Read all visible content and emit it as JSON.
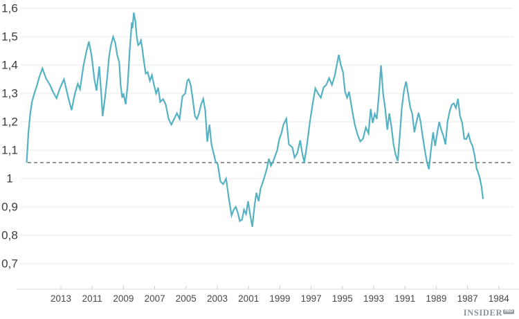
{
  "chart_data": {
    "type": "line",
    "title": "",
    "description": "Exchange-rate style line chart, monthly values, time axis reversed (newest year on the left)",
    "line_color": "#54b2c2",
    "x_axis": {
      "tick_labels": [
        "2013",
        "2011",
        "2009",
        "2007",
        "2005",
        "2003",
        "2001",
        "1999",
        "1997",
        "1995",
        "1993",
        "1991",
        "1989",
        "1987",
        "1984"
      ],
      "direction": "reversed",
      "years_per_tick_gap": 2
    },
    "y_axis": {
      "ticks": [
        {
          "label": "1,6",
          "value": 1.6
        },
        {
          "label": "1,5",
          "value": 1.5
        },
        {
          "label": "1,4",
          "value": 1.4
        },
        {
          "label": "1,3",
          "value": 1.3
        },
        {
          "label": "1,2",
          "value": 1.2
        },
        {
          "label": "1,1",
          "value": 1.1
        },
        {
          "label": "1",
          "value": 1.0
        },
        {
          "label": "0,9",
          "value": 0.9
        },
        {
          "label": "0,8",
          "value": 0.8
        },
        {
          "label": "0,7",
          "value": 0.7
        }
      ],
      "ylim": [
        0.65,
        1.63
      ],
      "grid": true
    },
    "reference_line": {
      "value": 1.056,
      "style": "dashed",
      "color": "#8f9598"
    },
    "points": [
      [
        2015.19,
        1.056
      ],
      [
        2015.08,
        1.16
      ],
      [
        2014.97,
        1.225
      ],
      [
        2014.85,
        1.27
      ],
      [
        2014.7,
        1.3
      ],
      [
        2014.55,
        1.325
      ],
      [
        2014.4,
        1.355
      ],
      [
        2014.18,
        1.388
      ],
      [
        2013.95,
        1.353
      ],
      [
        2013.7,
        1.33
      ],
      [
        2013.5,
        1.305
      ],
      [
        2013.28,
        1.283
      ],
      [
        2013.05,
        1.32
      ],
      [
        2012.8,
        1.35
      ],
      [
        2012.55,
        1.29
      ],
      [
        2012.32,
        1.241
      ],
      [
        2012.1,
        1.3
      ],
      [
        2011.92,
        1.334
      ],
      [
        2011.78,
        1.315
      ],
      [
        2011.55,
        1.4
      ],
      [
        2011.38,
        1.445
      ],
      [
        2011.21,
        1.483
      ],
      [
        2011.03,
        1.43
      ],
      [
        2010.86,
        1.35
      ],
      [
        2010.72,
        1.31
      ],
      [
        2010.55,
        1.395
      ],
      [
        2010.42,
        1.3
      ],
      [
        2010.33,
        1.22
      ],
      [
        2010.18,
        1.285
      ],
      [
        2010.05,
        1.35
      ],
      [
        2009.92,
        1.43
      ],
      [
        2009.8,
        1.47
      ],
      [
        2009.66,
        1.5
      ],
      [
        2009.52,
        1.478
      ],
      [
        2009.4,
        1.435
      ],
      [
        2009.27,
        1.41
      ],
      [
        2009.18,
        1.33
      ],
      [
        2009.08,
        1.285
      ],
      [
        2009.0,
        1.3
      ],
      [
        2008.86,
        1.262
      ],
      [
        2008.73,
        1.33
      ],
      [
        2008.6,
        1.45
      ],
      [
        2008.47,
        1.55
      ],
      [
        2008.42,
        1.53
      ],
      [
        2008.34,
        1.585
      ],
      [
        2008.24,
        1.555
      ],
      [
        2008.15,
        1.5
      ],
      [
        2008.06,
        1.47
      ],
      [
        2007.97,
        1.475
      ],
      [
        2007.88,
        1.487
      ],
      [
        2007.8,
        1.46
      ],
      [
        2007.71,
        1.42
      ],
      [
        2007.58,
        1.37
      ],
      [
        2007.45,
        1.375
      ],
      [
        2007.31,
        1.345
      ],
      [
        2007.18,
        1.365
      ],
      [
        2007.05,
        1.33
      ],
      [
        2006.91,
        1.3
      ],
      [
        2006.78,
        1.32
      ],
      [
        2006.65,
        1.27
      ],
      [
        2006.47,
        1.28
      ],
      [
        2006.29,
        1.26
      ],
      [
        2006.11,
        1.21
      ],
      [
        2005.94,
        1.19
      ],
      [
        2005.76,
        1.21
      ],
      [
        2005.58,
        1.23
      ],
      [
        2005.41,
        1.21
      ],
      [
        2005.23,
        1.29
      ],
      [
        2005.05,
        1.3
      ],
      [
        2004.92,
        1.345
      ],
      [
        2004.83,
        1.35
      ],
      [
        2004.7,
        1.33
      ],
      [
        2004.57,
        1.28
      ],
      [
        2004.43,
        1.22
      ],
      [
        2004.3,
        1.21
      ],
      [
        2004.17,
        1.23
      ],
      [
        2004.04,
        1.26
      ],
      [
        2003.9,
        1.281
      ],
      [
        2003.77,
        1.24
      ],
      [
        2003.64,
        1.13
      ],
      [
        2003.5,
        1.19
      ],
      [
        2003.37,
        1.12
      ],
      [
        2003.24,
        1.09
      ],
      [
        2003.11,
        1.06
      ],
      [
        2002.97,
        1.05
      ],
      [
        2002.8,
        0.99
      ],
      [
        2002.62,
        0.98
      ],
      [
        2002.44,
        1.0
      ],
      [
        2002.26,
        0.93
      ],
      [
        2002.09,
        0.87
      ],
      [
        2001.95,
        0.89
      ],
      [
        2001.82,
        0.9
      ],
      [
        2001.69,
        0.88
      ],
      [
        2001.56,
        0.85
      ],
      [
        2001.42,
        0.855
      ],
      [
        2001.29,
        0.89
      ],
      [
        2001.16,
        0.875
      ],
      [
        2001.03,
        0.92
      ],
      [
        2000.89,
        0.87
      ],
      [
        2000.76,
        0.83
      ],
      [
        2000.63,
        0.9
      ],
      [
        2000.5,
        0.95
      ],
      [
        2000.36,
        0.92
      ],
      [
        2000.23,
        0.965
      ],
      [
        2000.1,
        0.985
      ],
      [
        1999.96,
        1.01
      ],
      [
        1999.83,
        1.035
      ],
      [
        1999.7,
        1.07
      ],
      [
        1999.57,
        1.045
      ],
      [
        1999.43,
        1.06
      ],
      [
        1999.3,
        1.08
      ],
      [
        1999.17,
        1.1
      ],
      [
        1999.03,
        1.14
      ],
      [
        1998.9,
        1.16
      ],
      [
        1998.77,
        1.19
      ],
      [
        1998.59,
        1.211
      ],
      [
        1998.42,
        1.12
      ],
      [
        1998.2,
        1.11
      ],
      [
        1998.06,
        1.074
      ],
      [
        1997.88,
        1.09
      ],
      [
        1997.7,
        1.135
      ],
      [
        1997.57,
        1.09
      ],
      [
        1997.44,
        1.057
      ],
      [
        1997.26,
        1.12
      ],
      [
        1997.09,
        1.196
      ],
      [
        1996.91,
        1.26
      ],
      [
        1996.73,
        1.318
      ],
      [
        1996.56,
        1.3
      ],
      [
        1996.38,
        1.285
      ],
      [
        1996.2,
        1.322
      ],
      [
        1996.03,
        1.33
      ],
      [
        1995.85,
        1.354
      ],
      [
        1995.67,
        1.33
      ],
      [
        1995.5,
        1.36
      ],
      [
        1995.36,
        1.4
      ],
      [
        1995.23,
        1.436
      ],
      [
        1995.1,
        1.4
      ],
      [
        1994.96,
        1.375
      ],
      [
        1994.83,
        1.306
      ],
      [
        1994.7,
        1.285
      ],
      [
        1994.57,
        1.306
      ],
      [
        1994.39,
        1.245
      ],
      [
        1994.21,
        1.19
      ],
      [
        1994.03,
        1.155
      ],
      [
        1993.86,
        1.131
      ],
      [
        1993.68,
        1.14
      ],
      [
        1993.5,
        1.18
      ],
      [
        1993.33,
        1.159
      ],
      [
        1993.19,
        1.245
      ],
      [
        1993.06,
        1.196
      ],
      [
        1992.93,
        1.228
      ],
      [
        1992.8,
        1.21
      ],
      [
        1992.66,
        1.3
      ],
      [
        1992.53,
        1.399
      ],
      [
        1992.4,
        1.3
      ],
      [
        1992.26,
        1.245
      ],
      [
        1992.13,
        1.172
      ],
      [
        1992.0,
        1.23
      ],
      [
        1991.86,
        1.18
      ],
      [
        1991.73,
        1.12
      ],
      [
        1991.6,
        1.085
      ],
      [
        1991.46,
        1.062
      ],
      [
        1991.33,
        1.15
      ],
      [
        1991.2,
        1.25
      ],
      [
        1991.06,
        1.31
      ],
      [
        1990.93,
        1.342
      ],
      [
        1990.8,
        1.3
      ],
      [
        1990.66,
        1.25
      ],
      [
        1990.53,
        1.228
      ],
      [
        1990.4,
        1.163
      ],
      [
        1990.26,
        1.2
      ],
      [
        1990.13,
        1.232
      ],
      [
        1990.0,
        1.2
      ],
      [
        1989.87,
        1.15
      ],
      [
        1989.73,
        1.1
      ],
      [
        1989.6,
        1.06
      ],
      [
        1989.47,
        1.033
      ],
      [
        1989.34,
        1.1
      ],
      [
        1989.2,
        1.163
      ],
      [
        1989.07,
        1.115
      ],
      [
        1988.94,
        1.16
      ],
      [
        1988.81,
        1.2
      ],
      [
        1988.67,
        1.17
      ],
      [
        1988.54,
        1.15
      ],
      [
        1988.41,
        1.12
      ],
      [
        1988.28,
        1.2
      ],
      [
        1988.14,
        1.237
      ],
      [
        1988.01,
        1.26
      ],
      [
        1987.88,
        1.265
      ],
      [
        1987.74,
        1.249
      ],
      [
        1987.61,
        1.281
      ],
      [
        1987.48,
        1.22
      ],
      [
        1987.34,
        1.196
      ],
      [
        1987.21,
        1.14
      ],
      [
        1987.08,
        1.139
      ],
      [
        1986.94,
        1.157
      ],
      [
        1986.81,
        1.13
      ],
      [
        1986.68,
        1.115
      ],
      [
        1986.54,
        1.08
      ],
      [
        1986.41,
        1.033
      ],
      [
        1986.34,
        1.025
      ],
      [
        1986.21,
        1.0
      ],
      [
        1986.1,
        0.97
      ],
      [
        1986.01,
        0.928
      ]
    ]
  },
  "colors": {
    "background": "#ffffff",
    "gridline": "#e9eef0",
    "axis_line": "#d9dddf",
    "tick_mark": "#c9cdcf",
    "y_label": "#3c3c3c",
    "x_label": "#454849",
    "line": "#54b2c2",
    "dashed": "#8f9598",
    "logo": "#8b9298"
  },
  "branding": {
    "logo_text": "INSIDER",
    "logo_badge": "PRO"
  }
}
